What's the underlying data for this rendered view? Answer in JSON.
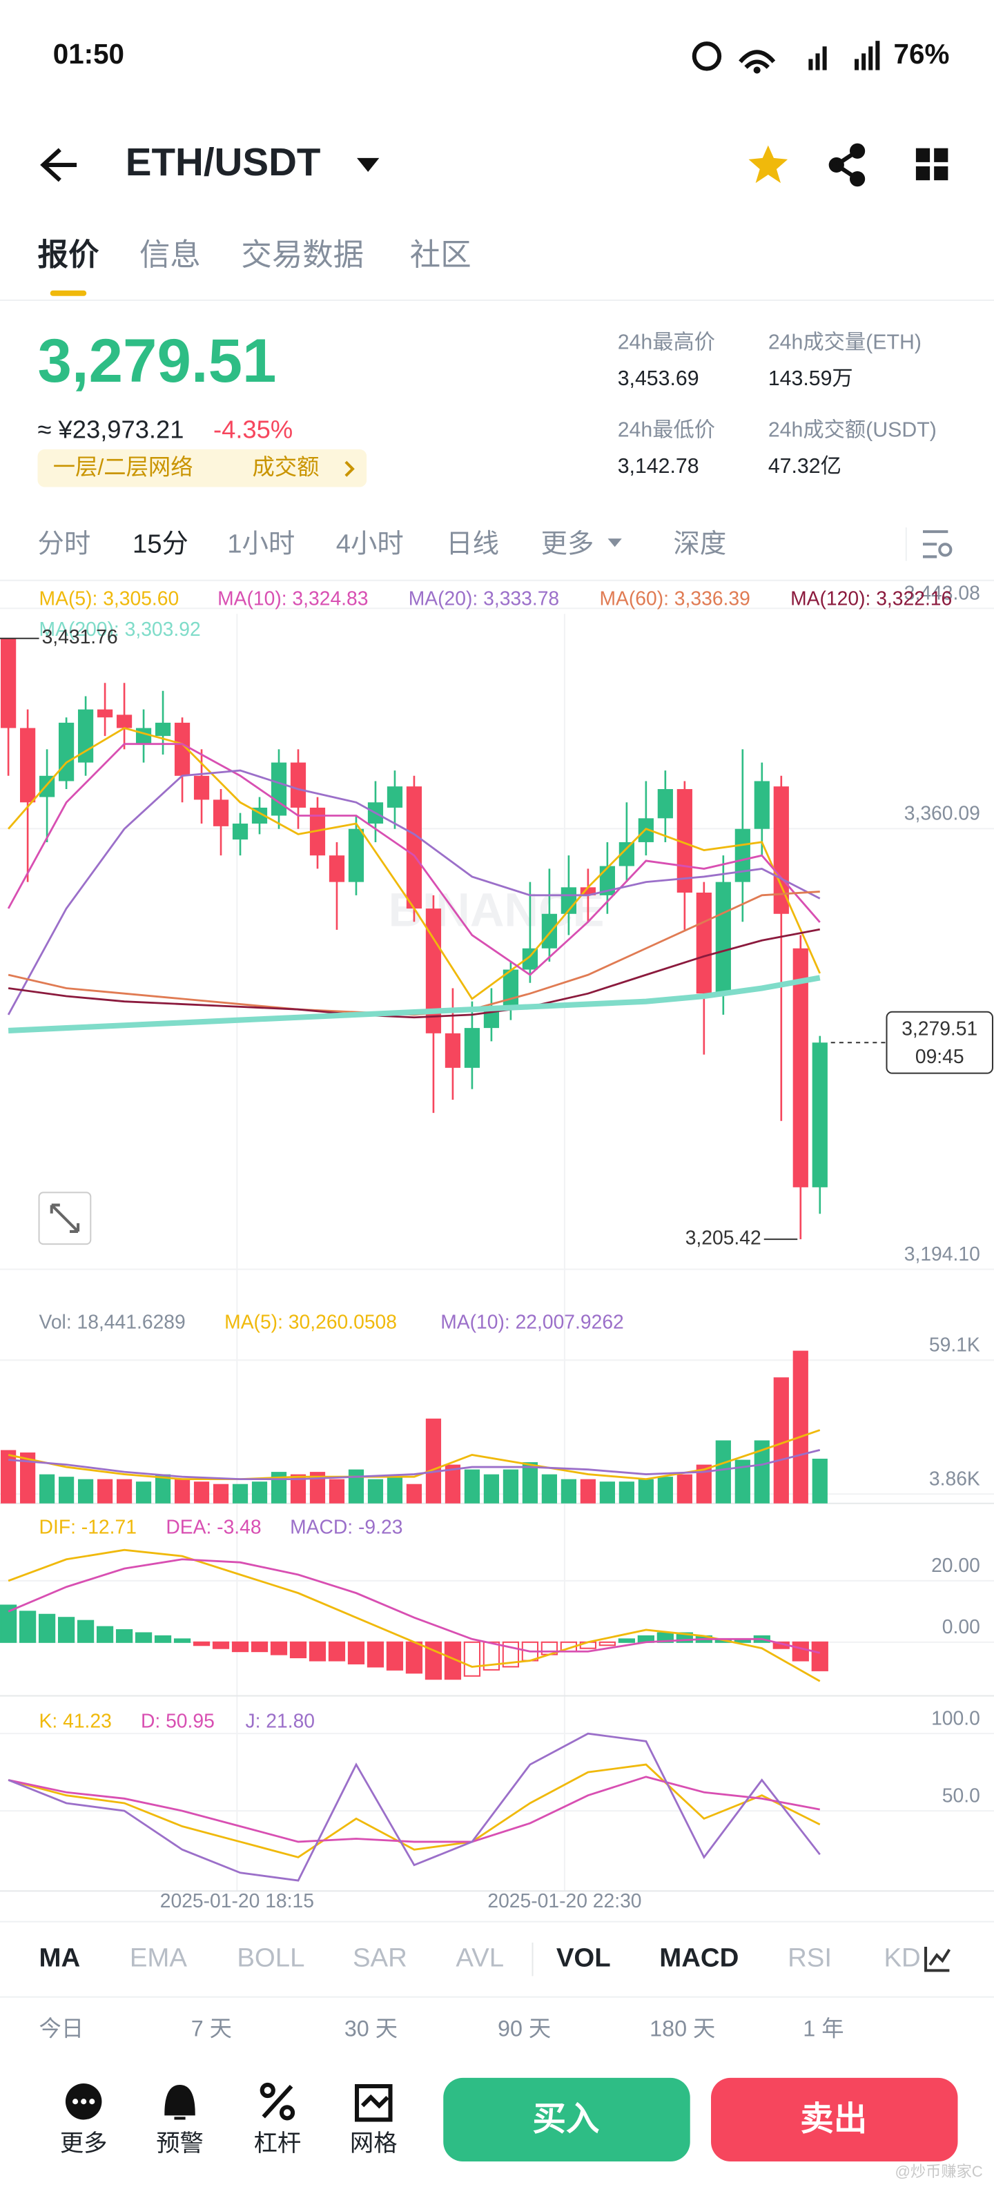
{
  "status_bar": {
    "time": "01:50",
    "battery": "76%"
  },
  "header": {
    "pair": "ETH/USDT"
  },
  "tabs": [
    "报价",
    "信息",
    "交易数据",
    "社区"
  ],
  "quote": {
    "price": "3,279.51",
    "cny": "≈ ¥23,973.21",
    "change": "-4.35%",
    "tags": [
      "一层/二层网络",
      "成交额"
    ]
  },
  "stats": [
    {
      "label": "24h最高价",
      "value": "3,453.69"
    },
    {
      "label": "24h成交量(ETH)",
      "value": "143.59万"
    },
    {
      "label": "24h最低价",
      "value": "3,142.78"
    },
    {
      "label": "24h成交额(USDT)",
      "value": "47.32亿"
    }
  ],
  "timeframes": [
    "分时",
    "15分",
    "1小时",
    "4小时",
    "日线",
    "更多",
    "深度"
  ],
  "chart_data": [
    {
      "type": "candlestick",
      "open": [
        3431.76,
        3398,
        3372,
        3378,
        3385,
        3405,
        3403,
        3392,
        3395,
        3400,
        3380,
        3371,
        3356,
        3362,
        3365,
        3385,
        3368,
        3350,
        3340,
        3362,
        3368,
        3376,
        3330,
        3283,
        3270,
        3285,
        3293,
        3307,
        3315,
        3328,
        3338,
        3335,
        3346,
        3355,
        3364,
        3375,
        3336,
        3298,
        3340,
        3360,
        3376,
        3315,
        3225
      ],
      "high": [
        3431.76,
        3405,
        3390,
        3402,
        3410,
        3415,
        3415,
        3405,
        3412,
        3402,
        3390,
        3375,
        3366,
        3372,
        3390,
        3390,
        3372,
        3355,
        3365,
        3378,
        3382,
        3380,
        3335,
        3300,
        3295,
        3300,
        3310,
        3340,
        3345,
        3350,
        3345,
        3355,
        3370,
        3378,
        3382,
        3378,
        3340,
        3350,
        3390,
        3385,
        3380,
        3320,
        3282
      ],
      "low": [
        3380,
        3340,
        3355,
        3375,
        3380,
        3395,
        3390,
        3385,
        3388,
        3370,
        3362,
        3350,
        3350,
        3358,
        3360,
        3360,
        3345,
        3322,
        3335,
        3355,
        3360,
        3325,
        3253,
        3258,
        3262,
        3280,
        3288,
        3302,
        3310,
        3320,
        3325,
        3328,
        3340,
        3350,
        3355,
        3322,
        3275,
        3290,
        3325,
        3350,
        3250,
        3205.42,
        3215
      ],
      "close": [
        3398,
        3370,
        3380,
        3400,
        3405,
        3402,
        3398,
        3398,
        3400,
        3380,
        3371,
        3361,
        3362,
        3368,
        3385,
        3368,
        3350,
        3340,
        3360,
        3370,
        3376,
        3330,
        3283,
        3270,
        3285,
        3293,
        3307,
        3315,
        3328,
        3338,
        3335,
        3346,
        3355,
        3364,
        3375,
        3336,
        3298,
        3340,
        3360,
        3378,
        3328,
        3225,
        3279.51
      ],
      "ylim": [
        3188.9,
        3451.5
      ],
      "yticks": [
        {
          "value": 3443.08,
          "label": "3,443.08"
        },
        {
          "value": 3360.09,
          "label": "3,360.09"
        },
        {
          "value": 3194.1,
          "label": "3,194.10"
        }
      ],
      "series": [
        {
          "name": "MA(5): 3,305.60",
          "color": "#f0b90b",
          "values": [
            3360,
            3385,
            3398,
            3392,
            3370,
            3358,
            3362,
            3330,
            3296,
            3312,
            3338,
            3360,
            3352,
            3355,
            3305.6
          ]
        },
        {
          "name": "MA(10): 3,324.83",
          "color": "#d84fb2",
          "values": [
            3330,
            3370,
            3392,
            3392,
            3380,
            3365,
            3365,
            3350,
            3320,
            3305,
            3325,
            3348,
            3345,
            3350,
            3324.83
          ]
        },
        {
          "name": "MA(20): 3,333.78",
          "color": "#9b6fc9",
          "values": [
            3290,
            3330,
            3360,
            3380,
            3382,
            3375,
            3370,
            3358,
            3342,
            3335,
            3335,
            3340,
            3342,
            3345,
            3333.78
          ]
        },
        {
          "name": "MA(60): 3,336.39",
          "color": "#e07b53",
          "values": [
            3305,
            3300,
            3298,
            3296,
            3294,
            3292,
            3291,
            3290,
            3292,
            3298,
            3305,
            3315,
            3325,
            3335,
            3336.39
          ]
        },
        {
          "name": "MA(120): 3,322.16",
          "color": "#8b1a3d",
          "values": [
            3300,
            3297,
            3295,
            3294,
            3293,
            3292,
            3290,
            3289,
            3290,
            3293,
            3298,
            3305,
            3312,
            3318,
            3322.16
          ]
        },
        {
          "name": "MA(200): 3,303.92",
          "color": "#7fdcc9",
          "values": [
            3284,
            3285,
            3286,
            3287,
            3288,
            3289,
            3290,
            3291,
            3292,
            3293,
            3294,
            3295,
            3297,
            3300,
            3303.92
          ]
        }
      ],
      "annotations": {
        "high": {
          "value": 3431.76,
          "label": "3,431.76"
        },
        "low": {
          "value": 3205.42,
          "label": "3,205.42"
        },
        "last": {
          "value": 3279.51,
          "label": "3,279.51",
          "time": "09:45"
        }
      },
      "watermark": "BINANCE",
      "x_labels": [
        "2025-01-20 18:15",
        "2025-01-20 22:30"
      ]
    },
    {
      "type": "bar",
      "title": "Vol: 18,441.6289",
      "values": [
        22000,
        21000,
        12000,
        11000,
        10000,
        10000,
        10000,
        9000,
        12000,
        10000,
        9000,
        8000,
        8000,
        9000,
        13000,
        12000,
        13000,
        10000,
        14000,
        10000,
        11000,
        8000,
        35000,
        16000,
        14000,
        12000,
        14000,
        17000,
        12000,
        10000,
        10000,
        9000,
        9000,
        10000,
        11000,
        12000,
        16000,
        26000,
        18000,
        26000,
        52000,
        63000,
        18441.6289
      ],
      "ylim": [
        0,
        65000
      ],
      "yticks": [
        {
          "value": 59100,
          "label": "59.1K"
        },
        {
          "value": 3860,
          "label": "3.86K"
        }
      ],
      "series": [
        {
          "name": "MA(5): 30,260.0508",
          "color": "#f0b90b",
          "values": [
            20000,
            15000,
            12000,
            10000,
            10000,
            11000,
            11000,
            11000,
            20000,
            16000,
            12000,
            10000,
            14000,
            22000,
            30260.0508
          ]
        },
        {
          "name": "MA(10): 22,007.9262",
          "color": "#9b6fc9",
          "values": [
            18000,
            16000,
            13000,
            11000,
            10000,
            10000,
            11000,
            12000,
            15000,
            15000,
            14000,
            12000,
            13000,
            16000,
            22007.9262
          ]
        }
      ]
    },
    {
      "type": "macd",
      "title": "MACD: -9.23",
      "values": [
        12,
        10,
        9,
        8,
        7,
        5,
        4,
        3,
        2,
        1,
        -1,
        -2,
        -3,
        -3,
        -4,
        -5,
        -6,
        -6,
        -7,
        -8,
        -9,
        -10,
        -12,
        -12,
        -11,
        -9,
        -8,
        -6,
        -4,
        -3,
        -2,
        -1,
        1,
        2,
        3,
        3,
        2,
        1,
        1,
        2,
        -2,
        -6,
        -9.23
      ],
      "ylim": [
        -17,
        42
      ],
      "yticks": [
        {
          "value": 20,
          "label": "20.00"
        },
        {
          "value": 0,
          "label": "0.00"
        }
      ],
      "series": [
        {
          "name": "DIF: -12.71",
          "color": "#f0b90b",
          "values": [
            20,
            27,
            30,
            28,
            22,
            16,
            8,
            0,
            -8,
            -6,
            0,
            4,
            2,
            -2,
            -12.71
          ]
        },
        {
          "name": "DEA: -3.48",
          "color": "#d84fb2",
          "values": [
            10,
            18,
            24,
            27,
            26,
            22,
            16,
            8,
            1,
            -3,
            -3,
            0,
            1,
            1,
            -3.48
          ]
        }
      ]
    },
    {
      "type": "line",
      "ylim": [
        0,
        119
      ],
      "yticks": [
        {
          "value": 100,
          "label": "100.0"
        },
        {
          "value": 50,
          "label": "50.0"
        }
      ],
      "series": [
        {
          "name": "K: 41.23",
          "color": "#f0b90b",
          "values": [
            70,
            60,
            55,
            40,
            30,
            20,
            45,
            25,
            30,
            55,
            75,
            80,
            45,
            60,
            41.23
          ]
        },
        {
          "name": "D: 50.95",
          "color": "#d84fb2",
          "values": [
            70,
            62,
            58,
            50,
            40,
            30,
            32,
            30,
            30,
            42,
            60,
            72,
            62,
            58,
            50.95
          ]
        },
        {
          "name": "J: 21.80",
          "color": "#9b6fc9",
          "values": [
            70,
            55,
            50,
            25,
            10,
            5,
            80,
            15,
            30,
            80,
            100,
            95,
            20,
            70,
            21.8
          ]
        }
      ]
    }
  ],
  "indicators": [
    "MA",
    "EMA",
    "BOLL",
    "SAR",
    "AVL",
    "VOL",
    "MACD",
    "RSI",
    "KD"
  ],
  "ranges": [
    "今日",
    "7 天",
    "30 天",
    "90 天",
    "180 天",
    "1 年"
  ],
  "nav": [
    "更多",
    "预警",
    "杠杆",
    "网格"
  ],
  "buttons": {
    "buy": "买入",
    "sell": "卖出"
  },
  "credit": "@炒币赚家C"
}
